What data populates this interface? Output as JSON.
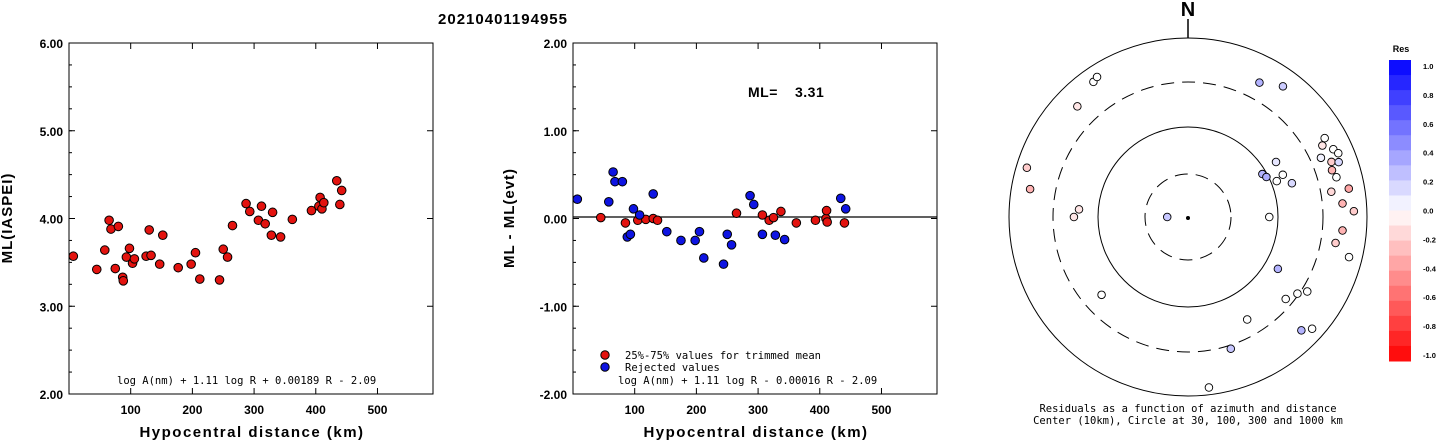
{
  "event_id": "20210401194955",
  "colors": {
    "accepted_fill": "#e3130f",
    "rejected_fill": "#0e14e2",
    "marker_stroke": "#000000",
    "colorbar_top": "#0000ff",
    "colorbar_bottom": "#ff0000"
  },
  "chart_data": [
    {
      "type": "scatter",
      "name_id": "ml_vs_distance",
      "title": "",
      "xlabel": "Hypocentral distance (km)",
      "ylabel": "ML(IASPEI)",
      "xlim": [
        0,
        590
      ],
      "ylim": [
        2.0,
        6.0
      ],
      "xticks": [
        100,
        200,
        300,
        400,
        500
      ],
      "yticks": [
        2.0,
        3.0,
        4.0,
        5.0,
        6.0
      ],
      "ytick_labels": [
        "2.00",
        "3.00",
        "4.00",
        "5.00",
        "6.00"
      ],
      "formula": "log A(nm) + 1.11 log R + 0.00189 R - 2.09",
      "series": [
        {
          "points": [
            [
              7,
              3.57
            ],
            [
              45,
              3.42
            ],
            [
              58,
              3.64
            ],
            [
              65,
              3.98
            ],
            [
              68,
              3.88
            ],
            [
              75,
              3.43
            ],
            [
              80,
              3.91
            ],
            [
              87,
              3.33
            ],
            [
              88,
              3.29
            ],
            [
              93,
              3.56
            ],
            [
              98,
              3.66
            ],
            [
              103,
              3.49
            ],
            [
              106,
              3.54
            ],
            [
              125,
              3.57
            ],
            [
              130,
              3.87
            ],
            [
              133,
              3.58
            ],
            [
              147,
              3.48
            ],
            [
              152,
              3.81
            ],
            [
              177,
              3.44
            ],
            [
              198,
              3.48
            ],
            [
              205,
              3.61
            ],
            [
              212,
              3.31
            ],
            [
              244,
              3.3
            ],
            [
              250,
              3.65
            ],
            [
              257,
              3.56
            ],
            [
              265,
              3.92
            ],
            [
              287,
              4.17
            ],
            [
              293,
              4.08
            ],
            [
              307,
              3.98
            ],
            [
              312,
              4.14
            ],
            [
              318,
              3.94
            ],
            [
              328,
              3.81
            ],
            [
              330,
              4.07
            ],
            [
              343,
              3.79
            ],
            [
              362,
              3.99
            ],
            [
              393,
              4.09
            ],
            [
              405,
              4.14
            ],
            [
              407,
              4.24
            ],
            [
              410,
              4.11
            ],
            [
              413,
              4.18
            ],
            [
              434,
              4.43
            ],
            [
              439,
              4.16
            ],
            [
              442,
              4.32
            ]
          ]
        }
      ]
    },
    {
      "type": "scatter",
      "name_id": "ml_residual_vs_distance",
      "title": "",
      "xlabel": "Hypocentral distance (km)",
      "ylabel": "ML - ML(evt)",
      "xlim": [
        0,
        590
      ],
      "ylim": [
        -2.0,
        2.0
      ],
      "xticks": [
        100,
        200,
        300,
        400,
        500
      ],
      "yticks": [
        -2.0,
        -1.0,
        0.0,
        1.0,
        2.0
      ],
      "ytick_labels": [
        "-2.00",
        "-1.00",
        "0.00",
        "1.00",
        "2.00"
      ],
      "zero_line": 0.0,
      "ml_label": "ML=",
      "ml_value": "3.31",
      "formula": "log A(nm) + 1.11 log R - 0.00016 R - 2.09",
      "legend": [
        "25%-75% values for trimmed mean",
        "Rejected values"
      ],
      "series": [
        {
          "name": "25%-75% values for trimmed mean",
          "points": [
            [
              45,
              0.01
            ],
            [
              85,
              -0.05
            ],
            [
              105,
              -0.02
            ],
            [
              118,
              -0.01
            ],
            [
              130,
              0.0
            ],
            [
              137,
              -0.02
            ],
            [
              265,
              0.06
            ],
            [
              307,
              0.04
            ],
            [
              318,
              -0.02
            ],
            [
              325,
              0.01
            ],
            [
              337,
              0.08
            ],
            [
              362,
              -0.05
            ],
            [
              393,
              -0.02
            ],
            [
              410,
              0.0
            ],
            [
              411,
              0.09
            ],
            [
              412,
              -0.04
            ],
            [
              440,
              -0.05
            ]
          ]
        },
        {
          "name": "Rejected values",
          "points": [
            [
              7,
              0.22
            ],
            [
              58,
              0.19
            ],
            [
              65,
              0.53
            ],
            [
              68,
              0.42
            ],
            [
              80,
              0.42
            ],
            [
              88,
              -0.21
            ],
            [
              93,
              -0.18
            ],
            [
              98,
              0.11
            ],
            [
              108,
              0.04
            ],
            [
              130,
              0.28
            ],
            [
              152,
              -0.15
            ],
            [
              175,
              -0.25
            ],
            [
              198,
              -0.25
            ],
            [
              205,
              -0.15
            ],
            [
              212,
              -0.45
            ],
            [
              244,
              -0.52
            ],
            [
              250,
              -0.18
            ],
            [
              257,
              -0.3
            ],
            [
              287,
              0.26
            ],
            [
              293,
              0.16
            ],
            [
              307,
              -0.18
            ],
            [
              328,
              -0.19
            ],
            [
              343,
              -0.24
            ],
            [
              434,
              0.23
            ],
            [
              442,
              0.11
            ]
          ]
        }
      ]
    },
    {
      "type": "polar-scatter",
      "name_id": "residual_azimuth_map",
      "north_label": "N",
      "caption_line1": "Residuals as a function of azimuth and distance",
      "caption_line2": "Center (10km), Circle at 30, 100, 300 and 1000 km",
      "colorbar_title": "Res",
      "colorbar_ticks": [
        "1.0",
        "0.8",
        "0.6",
        "0.4",
        "0.2",
        "0.0",
        "-0.2",
        "-0.4",
        "-0.6",
        "-0.8",
        "-1.0"
      ],
      "points": [
        {
          "az": 270,
          "dist": 17,
          "res": 0.22
        },
        {
          "az": 325,
          "dist": 680,
          "res": 0.0
        },
        {
          "az": 327,
          "dist": 720,
          "res": 0.0
        },
        {
          "az": 315,
          "dist": 540,
          "res": -0.1
        },
        {
          "az": 28,
          "dist": 480,
          "res": 0.3
        },
        {
          "az": 36,
          "dist": 620,
          "res": 0.2
        },
        {
          "az": 60,
          "dist": 90,
          "res": 0.3
        },
        {
          "az": 63,
          "dist": 95,
          "res": 0.32
        },
        {
          "az": 58,
          "dist": 140,
          "res": 0.1
        },
        {
          "az": 66,
          "dist": 140,
          "res": 0.0
        },
        {
          "az": 72,
          "dist": 160,
          "res": 0.15
        },
        {
          "az": 68,
          "dist": 115,
          "res": 0.0
        },
        {
          "az": 60,
          "dist": 560,
          "res": 0.0
        },
        {
          "az": 62,
          "dist": 480,
          "res": -0.1
        },
        {
          "az": 66,
          "dist": 400,
          "res": 0.05
        },
        {
          "az": 65,
          "dist": 600,
          "res": 0.0
        },
        {
          "az": 67,
          "dist": 650,
          "res": 0.0
        },
        {
          "az": 69,
          "dist": 500,
          "res": -0.2
        },
        {
          "az": 72,
          "dist": 470,
          "res": -0.3
        },
        {
          "az": 70,
          "dist": 600,
          "res": 0.15
        },
        {
          "az": 75,
          "dist": 500,
          "res": 0.0
        },
        {
          "az": 80,
          "dist": 400,
          "res": -0.15
        },
        {
          "az": 80,
          "dist": 650,
          "res": -0.35
        },
        {
          "az": 85,
          "dist": 520,
          "res": -0.3
        },
        {
          "az": 90,
          "dist": 80,
          "res": 0.0
        },
        {
          "az": 88,
          "dist": 700,
          "res": -0.2
        },
        {
          "az": 95,
          "dist": 520,
          "res": -0.3
        },
        {
          "az": 100,
          "dist": 450,
          "res": -0.2
        },
        {
          "az": 104,
          "dist": 700,
          "res": 0.0
        },
        {
          "az": 120,
          "dist": 140,
          "res": 0.3
        },
        {
          "az": 130,
          "dist": 250,
          "res": 0.0
        },
        {
          "az": 122,
          "dist": 350,
          "res": 0.0
        },
        {
          "az": 125,
          "dist": 290,
          "res": 0.0
        },
        {
          "az": 135,
          "dist": 600,
          "res": 0.3
        },
        {
          "az": 132,
          "dist": 720,
          "res": 0.0
        },
        {
          "az": 150,
          "dist": 200,
          "res": 0.0
        },
        {
          "az": 162,
          "dist": 330,
          "res": 0.22
        },
        {
          "az": 173,
          "dist": 820,
          "res": 0.0
        },
        {
          "az": 228,
          "dist": 190,
          "res": 0.0
        },
        {
          "az": 280,
          "dist": 600,
          "res": -0.3
        },
        {
          "az": 274,
          "dist": 160,
          "res": -0.1
        },
        {
          "az": 270,
          "dist": 180,
          "res": -0.1
        },
        {
          "az": 287,
          "dist": 750,
          "res": -0.2
        }
      ]
    }
  ]
}
